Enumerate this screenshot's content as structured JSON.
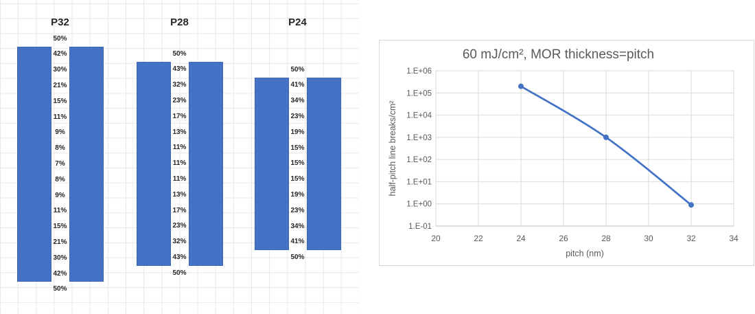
{
  "colors": {
    "bar_blue": "#4472C4",
    "line_blue": "#4472C4",
    "grid_light": "#e8e8e8",
    "chart_grid": "#d9d9d9",
    "axis_line": "#bfbfbf",
    "label_gray": "#595959",
    "text_dark": "#262626"
  },
  "chart_data": [
    {
      "type": "bar",
      "title": "P32",
      "unit": "%",
      "labels": [
        "50%",
        "42%",
        "30%",
        "21%",
        "15%",
        "11%",
        "9%",
        "8%",
        "7%",
        "8%",
        "9%",
        "11%",
        "15%",
        "21%",
        "30%",
        "42%",
        "50%"
      ],
      "values_pct": [
        50,
        42,
        30,
        21,
        15,
        11,
        9,
        8,
        7,
        8,
        9,
        11,
        15,
        21,
        30,
        42,
        50
      ]
    },
    {
      "type": "bar",
      "title": "P28",
      "unit": "%",
      "labels": [
        "50%",
        "43%",
        "32%",
        "23%",
        "17%",
        "13%",
        "11%",
        "11%",
        "11%",
        "13%",
        "17%",
        "23%",
        "32%",
        "43%",
        "50%"
      ],
      "values_pct": [
        50,
        43,
        32,
        23,
        17,
        13,
        11,
        11,
        11,
        13,
        17,
        23,
        32,
        43,
        50
      ]
    },
    {
      "type": "bar",
      "title": "P24",
      "unit": "%",
      "labels": [
        "50%",
        "41%",
        "34%",
        "23%",
        "19%",
        "15%",
        "15%",
        "15%",
        "19%",
        "23%",
        "34%",
        "41%",
        "50%"
      ],
      "values_pct": [
        50,
        41,
        34,
        23,
        19,
        15,
        15,
        15,
        19,
        23,
        34,
        41,
        50
      ]
    },
    {
      "type": "line",
      "title": "60 mJ/cm², MOR thickness=pitch",
      "xlabel": "pitch (nm)",
      "ylabel": "half-pitch line breaks/cm²",
      "x": [
        24,
        28,
        32
      ],
      "y": [
        200000,
        1000,
        0.9
      ],
      "xlim": [
        20,
        34
      ],
      "x_ticks": [
        20,
        22,
        24,
        26,
        28,
        30,
        32,
        34
      ],
      "ylog_exponent_range": [
        -1,
        6
      ],
      "y_tick_labels": [
        "1.E+06",
        "1.E+05",
        "1.E+04",
        "1.E+03",
        "1.E+02",
        "1.E+01",
        "1.E+00",
        "1.E-01"
      ],
      "grid": true,
      "smoothed": true,
      "legend": "none"
    }
  ]
}
